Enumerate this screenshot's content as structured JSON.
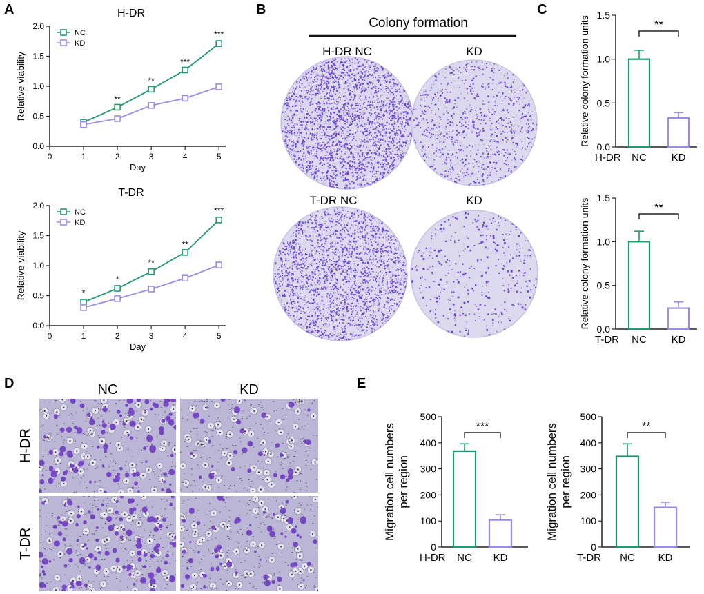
{
  "colors": {
    "nc": "#1f9a6b",
    "kd": "#9a8be6",
    "axis": "#222222",
    "stain": "#5a2ad0",
    "dish_bg": "#dcd8ee",
    "micro_bg": "#bcb6d6"
  },
  "panel_labels": {
    "A": "A",
    "B": "B",
    "C": "C",
    "D": "D",
    "E": "E"
  },
  "panel_b": {
    "title": "Colony formation",
    "dish_labels": {
      "hdr_nc": "H-DR NC",
      "hdr_kd": "KD",
      "tdr_nc": "T-DR NC",
      "tdr_kd": "KD"
    }
  },
  "panel_d": {
    "col_labels": [
      "NC",
      "KD"
    ],
    "row_labels": [
      "H-DR",
      "T-DR"
    ]
  },
  "chart_data": [
    {
      "id": "a1",
      "type": "line",
      "title": "H-DR",
      "xlabel": "Day",
      "ylabel": "Relative viability",
      "xlim": [
        0,
        5.2
      ],
      "ylim": [
        0,
        2.0
      ],
      "xticks": [
        "0",
        "1",
        "2",
        "3",
        "4",
        "5"
      ],
      "yticks": [
        "0.0",
        "0.5",
        "1.0",
        "1.5",
        "2.0"
      ],
      "x": [
        1,
        2,
        3,
        4,
        5
      ],
      "series": [
        {
          "name": "NC",
          "values": [
            0.4,
            0.65,
            0.95,
            1.27,
            1.71
          ],
          "errors": [
            0.03,
            0.03,
            0.04,
            0.03,
            0.05
          ]
        },
        {
          "name": "KD",
          "values": [
            0.36,
            0.46,
            0.68,
            0.8,
            0.99
          ],
          "errors": [
            0.03,
            0.03,
            0.04,
            0.03,
            0.03
          ]
        }
      ],
      "annotations": [
        "",
        "**",
        "**",
        "***",
        "***"
      ]
    },
    {
      "id": "a2",
      "type": "line",
      "title": "T-DR",
      "xlabel": "Day",
      "ylabel": "Relative viability",
      "xlim": [
        0,
        5.2
      ],
      "ylim": [
        0,
        2.0
      ],
      "xticks": [
        "0",
        "1",
        "2",
        "3",
        "4",
        "5"
      ],
      "yticks": [
        "0.0",
        "0.5",
        "1.0",
        "1.5",
        "2.0"
      ],
      "x": [
        1,
        2,
        3,
        4,
        5
      ],
      "series": [
        {
          "name": "NC",
          "values": [
            0.39,
            0.62,
            0.9,
            1.22,
            1.76
          ],
          "errors": [
            0.05,
            0.05,
            0.04,
            0.03,
            0.05
          ]
        },
        {
          "name": "KD",
          "values": [
            0.3,
            0.45,
            0.61,
            0.79,
            1.01
          ],
          "errors": [
            0.04,
            0.04,
            0.05,
            0.06,
            0.04
          ]
        }
      ],
      "annotations": [
        "*",
        "*",
        "**",
        "**",
        "***"
      ]
    },
    {
      "id": "c1",
      "type": "bar",
      "ylabel": "Relative colony formation units",
      "group_label": "H-DR",
      "categories": [
        "NC",
        "KD"
      ],
      "values": [
        1.0,
        0.33
      ],
      "errors": [
        0.1,
        0.06
      ],
      "ylim": [
        0,
        1.5
      ],
      "yticks": [
        "0.0",
        "0.5",
        "1.0",
        "1.5"
      ],
      "significance": "**"
    },
    {
      "id": "c2",
      "type": "bar",
      "ylabel": "Relative colony formation units",
      "group_label": "T-DR",
      "categories": [
        "NC",
        "KD"
      ],
      "values": [
        1.0,
        0.24
      ],
      "errors": [
        0.12,
        0.07
      ],
      "ylim": [
        0,
        1.5
      ],
      "yticks": [
        "0.0",
        "0.5",
        "1.0",
        "1.5"
      ],
      "significance": "**"
    },
    {
      "id": "e1",
      "type": "bar",
      "ylabel": "Migration cell numbers per region",
      "group_label": "H-DR",
      "categories": [
        "NC",
        "KD"
      ],
      "values": [
        368,
        104
      ],
      "errors": [
        28,
        20
      ],
      "ylim": [
        0,
        500
      ],
      "yticks": [
        "0",
        "100",
        "200",
        "300",
        "400",
        "500"
      ],
      "significance": "***"
    },
    {
      "id": "e2",
      "type": "bar",
      "ylabel": "Migration cell numbers per region",
      "group_label": "T-DR",
      "categories": [
        "NC",
        "KD"
      ],
      "values": [
        348,
        152
      ],
      "errors": [
        48,
        20
      ],
      "ylim": [
        0,
        500
      ],
      "yticks": [
        "0",
        "100",
        "200",
        "300",
        "400",
        "500"
      ],
      "significance": "**"
    }
  ]
}
